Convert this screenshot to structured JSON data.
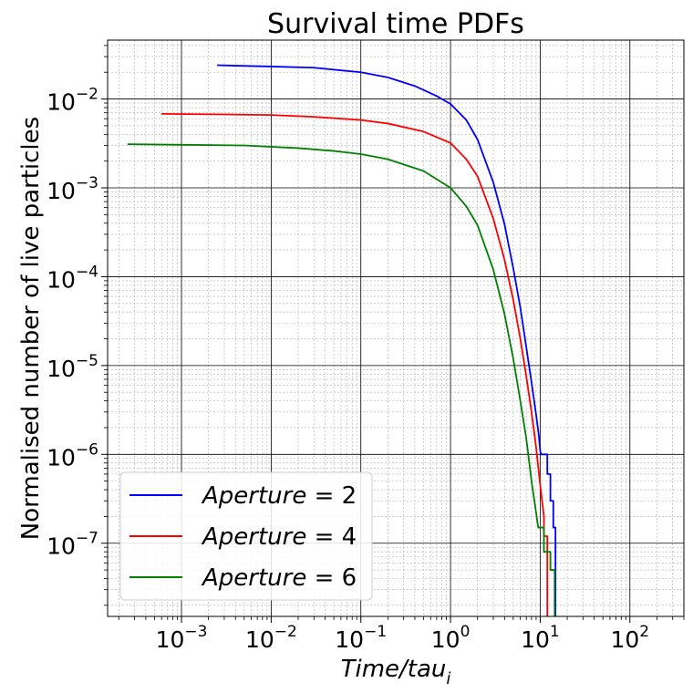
{
  "chart_data": {
    "type": "line",
    "title": "Survival time PDFs",
    "xlabel": "Time/tau",
    "xlabel_sub": "i",
    "ylabel": "Normalised number of live particles",
    "xscale": "log",
    "yscale": "log",
    "xlim": [
      0.00015,
      400
    ],
    "ylim": [
      1.5e-08,
      0.046
    ],
    "x_ticks": [
      {
        "base": "10",
        "exp": "−3"
      },
      {
        "base": "10",
        "exp": "−2"
      },
      {
        "base": "10",
        "exp": "−1"
      },
      {
        "base": "10",
        "exp": "0"
      },
      {
        "base": "10",
        "exp": "1"
      },
      {
        "base": "10",
        "exp": "2"
      }
    ],
    "y_ticks": [
      {
        "base": "10",
        "exp": "−7"
      },
      {
        "base": "10",
        "exp": "−6"
      },
      {
        "base": "10",
        "exp": "−5"
      },
      {
        "base": "10",
        "exp": "−4"
      },
      {
        "base": "10",
        "exp": "−3"
      },
      {
        "base": "10",
        "exp": "−2"
      }
    ],
    "grid": true,
    "minor_grid": true,
    "legend_position": "lower-left",
    "series": [
      {
        "name": "Aperture = 2",
        "color": "#0000ff",
        "points": [
          [
            0.0025,
            0.024
          ],
          [
            0.01,
            0.0232
          ],
          [
            0.03,
            0.0225
          ],
          [
            0.1,
            0.02
          ],
          [
            0.2,
            0.0175
          ],
          [
            0.4,
            0.014
          ],
          [
            0.7,
            0.0108
          ],
          [
            1.0,
            0.0088
          ],
          [
            1.5,
            0.0058
          ],
          [
            2.0,
            0.0035
          ],
          [
            3.0,
            0.00115
          ],
          [
            4.0,
            0.00039
          ],
          [
            5.0,
            0.000125
          ],
          [
            6.0,
            4.5e-05
          ],
          [
            7.0,
            1.6e-05
          ],
          [
            8.0,
            6.5e-06
          ],
          [
            9.0,
            2.8e-06
          ],
          [
            9.6,
            1.7e-06
          ],
          [
            10.0,
            1.1e-06
          ],
          [
            10.2,
            1e-06
          ],
          [
            12.0,
            1e-06
          ],
          [
            12.0,
            6e-07
          ],
          [
            13.0,
            6e-07
          ],
          [
            13.0,
            3e-07
          ],
          [
            14.0,
            3e-07
          ],
          [
            14.0,
            1.5e-07
          ],
          [
            14.8,
            1.5e-07
          ],
          [
            14.8,
            1.5e-08
          ]
        ]
      },
      {
        "name": "Aperture = 4",
        "color": "#ff0000",
        "points": [
          [
            0.0006,
            0.0068
          ],
          [
            0.003,
            0.0067
          ],
          [
            0.01,
            0.0066
          ],
          [
            0.03,
            0.0063
          ],
          [
            0.1,
            0.0058
          ],
          [
            0.2,
            0.0053
          ],
          [
            0.5,
            0.0043
          ],
          [
            1.0,
            0.0032
          ],
          [
            1.5,
            0.0021
          ],
          [
            2.0,
            0.00135
          ],
          [
            3.0,
            0.00045
          ],
          [
            4.0,
            0.000155
          ],
          [
            5.0,
            5.5e-05
          ],
          [
            6.0,
            2e-05
          ],
          [
            7.0,
            7.5e-06
          ],
          [
            8.0,
            3e-06
          ],
          [
            9.0,
            1.2e-06
          ],
          [
            10.0,
            4.5e-07
          ],
          [
            11.0,
            2e-07
          ],
          [
            11.0,
            1.2e-07
          ],
          [
            12.0,
            1.2e-07
          ],
          [
            12.0,
            1.5e-08
          ]
        ]
      },
      {
        "name": "Aperture = 6",
        "color": "#008000",
        "points": [
          [
            0.00025,
            0.0031
          ],
          [
            0.001,
            0.00305
          ],
          [
            0.005,
            0.003
          ],
          [
            0.02,
            0.0028
          ],
          [
            0.05,
            0.0026
          ],
          [
            0.1,
            0.0024
          ],
          [
            0.2,
            0.0021
          ],
          [
            0.5,
            0.00155
          ],
          [
            1.0,
            0.001
          ],
          [
            1.5,
            0.00062
          ],
          [
            2.0,
            0.00038
          ],
          [
            3.0,
            0.00012
          ],
          [
            4.0,
            3.8e-05
          ],
          [
            5.0,
            1.2e-05
          ],
          [
            6.0,
            4e-06
          ],
          [
            7.0,
            1.5e-06
          ],
          [
            8.0,
            5e-07
          ],
          [
            9.0,
            2.2e-07
          ],
          [
            9.5,
            1.5e-07
          ],
          [
            11.0,
            1.5e-07
          ],
          [
            11.0,
            8e-08
          ],
          [
            13.0,
            8e-08
          ],
          [
            13.0,
            5e-08
          ],
          [
            14.5,
            5e-08
          ],
          [
            14.5,
            1.5e-08
          ]
        ]
      }
    ],
    "legend": [
      {
        "var": "Aperture",
        "op": " = ",
        "val": "2",
        "color": "#0000ff"
      },
      {
        "var": "Aperture",
        "op": " = ",
        "val": "4",
        "color": "#ff0000"
      },
      {
        "var": "Aperture",
        "op": " = ",
        "val": "6",
        "color": "#008000"
      }
    ]
  }
}
